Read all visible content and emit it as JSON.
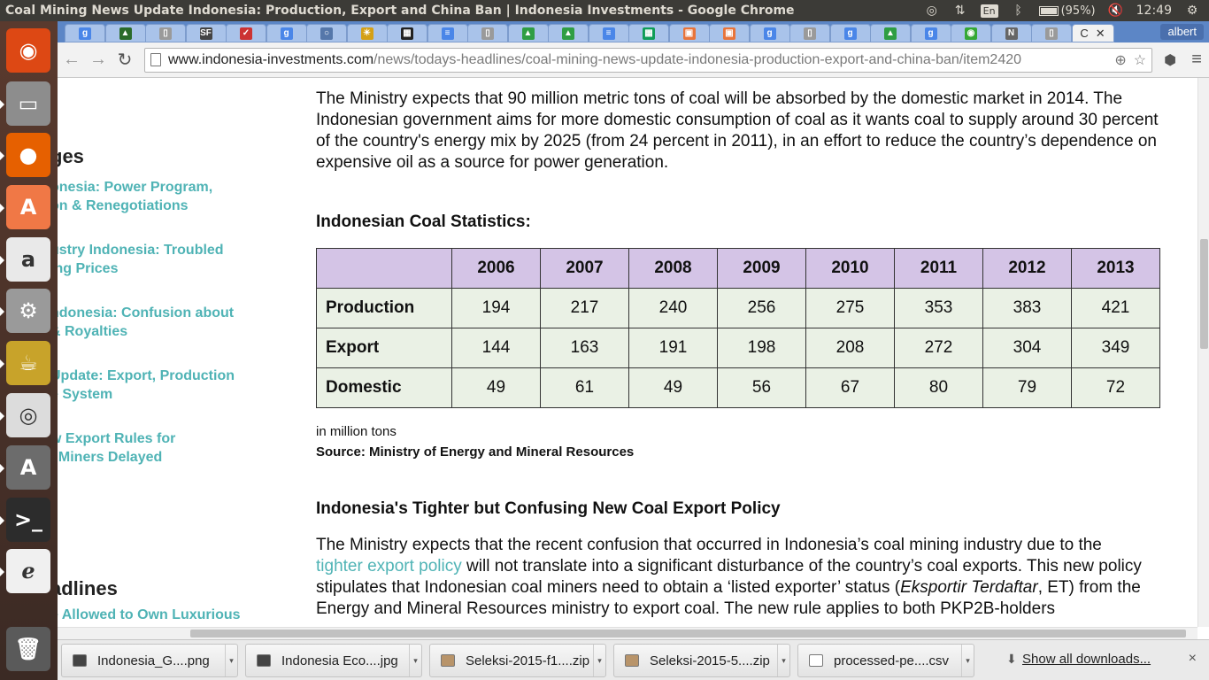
{
  "system_bar": {
    "window_title": "Coal Mining News Update Indonesia: Production, Export and China Ban | Indonesia Investments - Google Chrome",
    "keyboard_layout": "En",
    "battery": "(95%)",
    "time": "12:49",
    "icons": [
      "chrome-icon",
      "network-arrows-icon",
      "keyboard-icon",
      "bluetooth-icon",
      "battery-icon",
      "volume-muted-icon",
      "gear-icon"
    ]
  },
  "launcher": {
    "items": [
      {
        "name": "ubuntu-dash-icon",
        "glyph": "◉",
        "bg": "#dd4814"
      },
      {
        "name": "files-icon",
        "glyph": "▭",
        "bg": "#8d8d8d"
      },
      {
        "name": "firefox-icon",
        "glyph": "●",
        "bg": "#e66000"
      },
      {
        "name": "software-center-icon",
        "glyph": "A",
        "bg": "#f07846"
      },
      {
        "name": "amazon-icon",
        "glyph": "a",
        "bg": "#e9e9e9"
      },
      {
        "name": "system-settings-icon",
        "glyph": "⚙",
        "bg": "#9a9a9a"
      },
      {
        "name": "teapot-icon",
        "glyph": "☕",
        "bg": "#c8a32a"
      },
      {
        "name": "chrome-launcher-icon",
        "glyph": "◎",
        "bg": "#dcdcdc"
      },
      {
        "name": "updater-icon",
        "glyph": "A",
        "bg": "#6c6c6c"
      },
      {
        "name": "terminal-icon",
        "glyph": ">_",
        "bg": "#2c2c2c"
      },
      {
        "name": "document-viewer-icon",
        "glyph": "ℯ",
        "bg": "#f0f0f0"
      },
      {
        "name": "trash-icon",
        "glyph": "🗑",
        "bg": "#5a5a5a"
      }
    ]
  },
  "browser": {
    "tabs": [
      {
        "fav": "g",
        "color": "#4a86e8"
      },
      {
        "fav": "▲",
        "color": "#2a6b2a"
      },
      {
        "fav": "▯",
        "color": "#9a9a9a"
      },
      {
        "fav": "SF",
        "color": "#444444"
      },
      {
        "fav": "✓",
        "color": "#cc3333"
      },
      {
        "fav": "g",
        "color": "#4a86e8"
      },
      {
        "fav": "○",
        "color": "#5577aa"
      },
      {
        "fav": "☀",
        "color": "#d4a017"
      },
      {
        "fav": "▦",
        "color": "#222222"
      },
      {
        "fav": "≡",
        "color": "#4a86e8"
      },
      {
        "fav": "▯",
        "color": "#9a9a9a"
      },
      {
        "fav": "▲",
        "color": "#2f9e44"
      },
      {
        "fav": "▲",
        "color": "#2f9e44"
      },
      {
        "fav": "≡",
        "color": "#4a86e8"
      },
      {
        "fav": "▦",
        "color": "#0f9d58"
      },
      {
        "fav": "▣",
        "color": "#e8743b"
      },
      {
        "fav": "▣",
        "color": "#e8743b"
      },
      {
        "fav": "g",
        "color": "#4a86e8"
      },
      {
        "fav": "▯",
        "color": "#9a9a9a"
      },
      {
        "fav": "g",
        "color": "#4a86e8"
      },
      {
        "fav": "▲",
        "color": "#2f9e44"
      },
      {
        "fav": "g",
        "color": "#4a86e8"
      },
      {
        "fav": "◉",
        "color": "#35a835"
      },
      {
        "fav": "N",
        "color": "#666666"
      },
      {
        "fav": "▯",
        "color": "#9a9a9a"
      }
    ],
    "active_tab_glyph": "C",
    "profile_name": "albert",
    "url_host": "www.indonesia-investments.com",
    "url_path": "/news/todays-headlines/coal-mining-news-update-indonesia-production-export-and-china-ban/item2420"
  },
  "sidebar": {
    "heading_1": "ges",
    "links_1": [
      {
        "line1": "onesia: Power Program,",
        "line2": "on & Renegotiations"
      },
      {
        "line1": "ustry Indonesia: Troubled",
        "line2": "ing Prices"
      },
      {
        "line1": "ndonesia: Confusion about",
        "line2": "& Royalties"
      },
      {
        "line1": "Update: Export, Production",
        "line2": "e System"
      },
      {
        "line1": "w Export Rules for",
        "line2": "l Miners Delayed"
      }
    ],
    "heading_2": "adlines",
    "links_2": [
      {
        "line1": "e Allowed to Own Luxurious"
      }
    ]
  },
  "article": {
    "intro": "The Ministry expects that 90 million metric tons of coal will be absorbed by the domestic market in 2014. The Indonesian government aims for more domestic consumption of coal as it wants coal to supply around 30 percent of the country's energy mix by 2025 (from 24 percent in 2011), in an effort to reduce the country’s dependence on expensive oil as a source for power generation.",
    "stats_heading": "Indonesian Coal Statistics:",
    "unit_note": "in million tons",
    "source_note": "Source: Ministry of Energy and Mineral Resources",
    "policy_heading": "Indonesia's Tighter but Confusing New Coal Export Policy",
    "policy_para_1": "The Ministry expects that the recent confusion that occurred in Indonesia’s coal mining industry due to the",
    "policy_link": "tighter export policy",
    "policy_para_2": " will not translate into a significant disturbance of the country’s coal exports. This new policy stipulates that Indonesian coal miners need to obtain a ‘listed exporter’ status (",
    "policy_italic": "Eksportir Terdaftar",
    "policy_para_3": ", ET) from the Energy and Mineral Resources ministry to export coal. The new rule applies to both PKP2B-holders"
  },
  "chart_data": {
    "type": "table",
    "title": "Indonesian Coal Statistics:",
    "columns": [
      "2006",
      "2007",
      "2008",
      "2009",
      "2010",
      "2011",
      "2012",
      "2013"
    ],
    "series": [
      {
        "name": "Production",
        "values": [
          194,
          217,
          240,
          256,
          275,
          353,
          383,
          421
        ]
      },
      {
        "name": "Export",
        "values": [
          144,
          163,
          191,
          198,
          208,
          272,
          304,
          349
        ]
      },
      {
        "name": "Domestic",
        "values": [
          49,
          61,
          49,
          56,
          67,
          80,
          79,
          72
        ]
      }
    ],
    "unit": "in million tons"
  },
  "downloads": {
    "items": [
      {
        "label": "Indonesia_G....png",
        "icon_color": "#444444"
      },
      {
        "label": "Indonesia Eco....jpg",
        "icon_color": "#444444"
      },
      {
        "label": "Seleksi-2015-f1....zip",
        "icon_color": "#b8946a"
      },
      {
        "label": "Seleksi-2015-5....zip",
        "icon_color": "#b8946a"
      },
      {
        "label": "processed-pe....csv",
        "icon_color": "#ffffff"
      }
    ],
    "show_all": "Show all downloads...",
    "close_glyph": "×"
  }
}
